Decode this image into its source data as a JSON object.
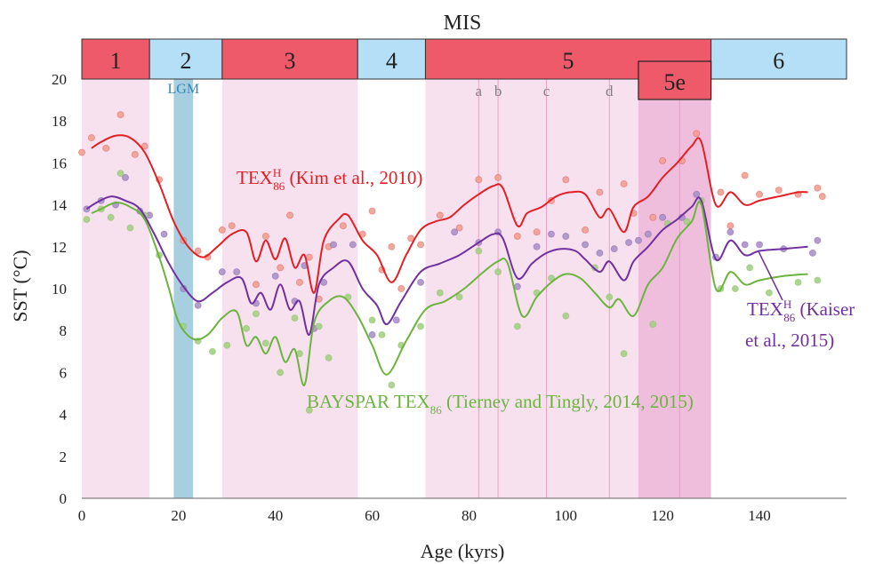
{
  "chart_data": {
    "type": "line",
    "title": "",
    "xlabel": "Age (kyrs)",
    "ylabel": "SST (°C)",
    "xlim": [
      0,
      158
    ],
    "ylim": [
      0,
      20
    ],
    "xticks": [
      0,
      20,
      40,
      60,
      80,
      100,
      120,
      140
    ],
    "yticks": [
      0,
      2,
      4,
      6,
      8,
      10,
      12,
      14,
      16,
      18,
      20
    ],
    "grid": false,
    "mis": {
      "title": "MIS",
      "stages": [
        {
          "label": "1",
          "start": 0,
          "end": 14,
          "color": "#ef5a6a",
          "shade": true
        },
        {
          "label": "2",
          "start": 14,
          "end": 29,
          "color": "#b4dff6",
          "shade": false
        },
        {
          "label": "3",
          "start": 29,
          "end": 57,
          "color": "#ef5a6a",
          "shade": true
        },
        {
          "label": "4",
          "start": 57,
          "end": 71,
          "color": "#b4dff6",
          "shade": false
        },
        {
          "label": "5",
          "start": 71,
          "end": 130,
          "color": "#ef5a6a",
          "shade": true
        },
        {
          "label": "6",
          "start": 130,
          "end": 158,
          "color": "#b4dff6",
          "shade": false
        }
      ],
      "substage_box": {
        "label": "5e",
        "start": 115,
        "end": 130
      },
      "substages": [
        {
          "label": "a",
          "x": 82
        },
        {
          "label": "b",
          "x": 86
        },
        {
          "label": "c",
          "x": 96
        },
        {
          "label": "d",
          "x": 109
        }
      ],
      "lgm": {
        "label": "LGM",
        "start": 19,
        "end": 23
      }
    },
    "series": [
      {
        "name": "TEX",
        "name_sup": "H",
        "name_sub": "86",
        "name_tail": " (Kim et al., 2010)",
        "color": "#e31e24",
        "point_color": "#f0a090",
        "curve_x": [
          2,
          4,
          7,
          10,
          13,
          16,
          19,
          22,
          25,
          28,
          31,
          34,
          36,
          38,
          40,
          42,
          44,
          46,
          48,
          50,
          53,
          55,
          58,
          61,
          64,
          67,
          70,
          73,
          76,
          79,
          82,
          85,
          87,
          90,
          92,
          95,
          98,
          101,
          104,
          107,
          109,
          112,
          114,
          117,
          120,
          123,
          126,
          128,
          131,
          134,
          137,
          140,
          144,
          148,
          150
        ],
        "curve_y": [
          16.7,
          17.0,
          17.3,
          17.2,
          16.5,
          15.0,
          13.2,
          12.0,
          11.5,
          12.0,
          12.6,
          12.7,
          11.3,
          12.3,
          11.4,
          12.4,
          11.0,
          11.6,
          9.8,
          12.3,
          13.3,
          13.5,
          12.3,
          11.6,
          10.3,
          11.6,
          12.8,
          13.2,
          13.4,
          14.0,
          14.5,
          14.9,
          14.8,
          13.0,
          13.6,
          13.9,
          14.4,
          14.6,
          14.5,
          13.4,
          13.8,
          12.7,
          13.9,
          14.4,
          15.3,
          16.0,
          16.8,
          17.0,
          14.0,
          14.6,
          14.0,
          14.2,
          14.4,
          14.6,
          14.6
        ],
        "points_x": [
          0,
          2,
          5,
          8,
          11,
          13,
          16,
          21,
          24,
          26,
          29,
          31,
          36,
          38,
          41,
          43,
          45,
          47,
          49,
          51,
          54,
          58,
          60,
          62,
          64,
          66,
          68,
          70,
          74,
          78,
          82,
          86,
          90,
          94,
          97,
          100,
          104,
          107,
          112,
          114,
          118,
          120,
          124,
          127,
          132,
          134,
          137,
          140,
          144,
          148,
          152,
          153
        ],
        "points_y": [
          16.5,
          17.2,
          16.7,
          18.3,
          16.4,
          16.8,
          15.2,
          12.3,
          11.8,
          11.5,
          12.8,
          13.0,
          10.2,
          12.5,
          11.0,
          13.5,
          10.3,
          11.5,
          9.5,
          12.0,
          13.0,
          12.6,
          13.7,
          10.9,
          12.0,
          10.0,
          12.4,
          12.1,
          13.5,
          12.9,
          15.2,
          15.3,
          12.5,
          12.7,
          14.2,
          15.2,
          12.8,
          14.6,
          15.0,
          13.6,
          13.4,
          16.1,
          16.1,
          17.4,
          14.6,
          13.0,
          15.4,
          14.5,
          14.7,
          14.5,
          14.8,
          14.4
        ]
      },
      {
        "name": "TEX",
        "name_sup": "H",
        "name_sub": "86",
        "name_tail": " (Kaiser",
        "name_line2": "et al., 2015)",
        "color": "#7030a0",
        "point_color": "#a892c8",
        "curve_x": [
          1,
          3,
          6,
          9,
          12,
          15,
          18,
          21,
          24,
          27,
          30,
          33,
          35,
          37,
          39,
          41,
          43,
          45,
          47,
          49,
          52,
          55,
          58,
          61,
          63,
          66,
          70,
          74,
          78,
          82,
          85,
          87,
          90,
          93,
          96,
          99,
          102,
          104,
          107,
          109,
          112,
          114,
          117,
          120,
          123,
          126,
          128,
          131,
          134,
          137,
          140,
          145,
          150
        ],
        "curve_y": [
          13.8,
          14.1,
          14.4,
          14.2,
          13.8,
          12.6,
          11.2,
          10.1,
          9.4,
          9.8,
          10.3,
          10.5,
          9.3,
          9.8,
          9.0,
          10.2,
          9.0,
          9.4,
          7.8,
          10.2,
          11.0,
          11.3,
          10.0,
          9.2,
          8.3,
          9.4,
          10.8,
          11.2,
          11.6,
          12.2,
          12.6,
          12.4,
          10.5,
          11.2,
          11.7,
          11.9,
          11.8,
          11.4,
          10.8,
          11.3,
          10.4,
          11.3,
          12.0,
          12.8,
          13.3,
          13.9,
          14.2,
          11.4,
          12.3,
          11.6,
          11.8,
          11.9,
          12.0
        ],
        "points_x": [
          1,
          4,
          7,
          9,
          12,
          14,
          17,
          21,
          24,
          29,
          32,
          36,
          40,
          44,
          46,
          48,
          50,
          52,
          56,
          60,
          65,
          70,
          77,
          82,
          86,
          90,
          94,
          97,
          100,
          104,
          107,
          110,
          113,
          115,
          117,
          120,
          124,
          127,
          131,
          134,
          137,
          140,
          145,
          151,
          152
        ],
        "points_y": [
          13.8,
          14.2,
          14.0,
          15.3,
          13.7,
          13.5,
          12.6,
          10.0,
          9.2,
          10.8,
          10.8,
          9.3,
          10.6,
          9.4,
          11.1,
          8.1,
          10.3,
          12.1,
          12.1,
          7.8,
          8.5,
          10.3,
          12.7,
          12.2,
          12.7,
          10.1,
          12.0,
          12.6,
          12.5,
          12.1,
          11.7,
          11.9,
          12.2,
          12.3,
          12.6,
          13.4,
          13.4,
          14.5,
          11.5,
          12.7,
          12.1,
          12.1,
          11.9,
          11.7,
          12.3
        ]
      },
      {
        "name": "BAYSPAR TEX",
        "name_sub": "86",
        "name_tail": " (Tierney and Tingly, 2014, 2015)",
        "color": "#6cb33f",
        "point_color": "#a4cf84",
        "curve_x": [
          2,
          4,
          7,
          10,
          13,
          16,
          18,
          20,
          23,
          26,
          29,
          32,
          34,
          36,
          38,
          40,
          42,
          44,
          46,
          48,
          51,
          54,
          57,
          60,
          63,
          67,
          71,
          75,
          79,
          83,
          86,
          88,
          91,
          94,
          97,
          100,
          103,
          106,
          109,
          111,
          114,
          117,
          120,
          123,
          126,
          128,
          131,
          134,
          137,
          140,
          145,
          150
        ],
        "curve_y": [
          13.6,
          13.8,
          14.1,
          13.9,
          13.3,
          11.5,
          10.0,
          8.4,
          7.6,
          7.8,
          8.6,
          8.9,
          7.3,
          7.7,
          6.9,
          7.7,
          6.5,
          7.1,
          5.4,
          8.4,
          9.4,
          9.6,
          8.7,
          7.3,
          5.9,
          7.5,
          9.0,
          9.4,
          10.0,
          10.8,
          11.3,
          11.2,
          8.7,
          9.6,
          10.3,
          10.7,
          10.5,
          9.8,
          9.1,
          9.5,
          8.7,
          10.2,
          11.0,
          12.4,
          13.2,
          14.0,
          10.0,
          10.8,
          10.2,
          10.4,
          10.6,
          10.7
        ],
        "points_x": [
          1,
          4,
          6,
          8,
          10,
          13,
          16,
          21,
          24,
          27,
          30,
          34,
          36,
          38,
          41,
          44,
          45,
          47,
          49,
          51,
          55,
          60,
          62,
          64,
          66,
          70,
          74,
          78,
          82,
          86,
          90,
          94,
          97,
          100,
          106,
          109,
          112,
          118,
          121,
          125,
          128,
          132,
          135,
          138,
          142,
          148,
          152
        ],
        "points_y": [
          13.3,
          13.8,
          13.4,
          15.5,
          12.9,
          13.5,
          11.6,
          8.2,
          7.5,
          7.0,
          7.3,
          8.1,
          8.8,
          7.4,
          6.0,
          8.6,
          6.9,
          4.2,
          8.2,
          6.7,
          9.6,
          8.5,
          7.8,
          5.4,
          7.3,
          8.2,
          9.8,
          9.6,
          11.8,
          10.8,
          8.2,
          9.8,
          10.5,
          8.7,
          11.0,
          9.6,
          6.9,
          8.3,
          13.1,
          13.2,
          14.2,
          10.0,
          10.0,
          11.0,
          9.8,
          10.3,
          10.4
        ]
      }
    ]
  }
}
